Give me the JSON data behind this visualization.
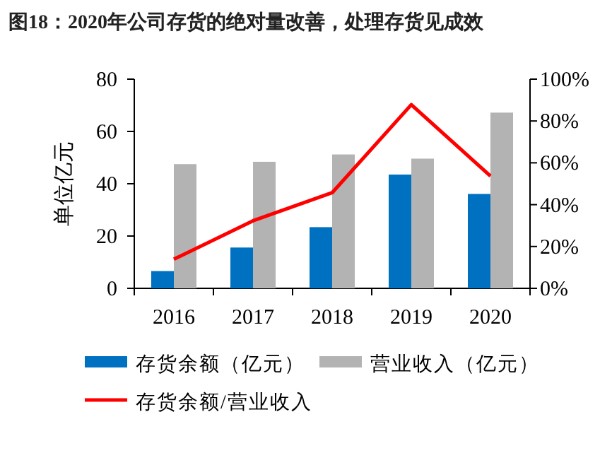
{
  "chart_data": {
    "type": "bar",
    "title": "图18：2020年公司存货的绝对量改善，处理存货见成效",
    "ylabel": "单位亿元",
    "categories": [
      "2016",
      "2017",
      "2018",
      "2019",
      "2020"
    ],
    "series": [
      {
        "name": "存货余额（亿元）",
        "color": "#0070c0",
        "values": [
          6.6,
          15.6,
          23.4,
          43.5,
          36.1
        ]
      },
      {
        "name": "营业收入（亿元）",
        "color": "#b3b3b3",
        "values": [
          47.5,
          48.4,
          51.2,
          49.6,
          67.2
        ]
      },
      {
        "name": "存货余额/营业收入",
        "type": "line",
        "axis": "y2",
        "color": "#ff0000",
        "values": [
          13.9,
          32.3,
          45.7,
          87.8,
          53.7
        ]
      }
    ],
    "ylim": [
      0,
      80
    ],
    "yticks": [
      0,
      20,
      40,
      60,
      80
    ],
    "y2lim": [
      0,
      100
    ],
    "y2ticks": [
      {
        "value": 0,
        "label": "0%"
      },
      {
        "value": 20,
        "label": "20%"
      },
      {
        "value": 40,
        "label": "40%"
      },
      {
        "value": 60,
        "label": "60%"
      },
      {
        "value": 80,
        "label": "80%"
      },
      {
        "value": 100,
        "label": "100%"
      }
    ],
    "legend": "bottom",
    "grid": false
  }
}
